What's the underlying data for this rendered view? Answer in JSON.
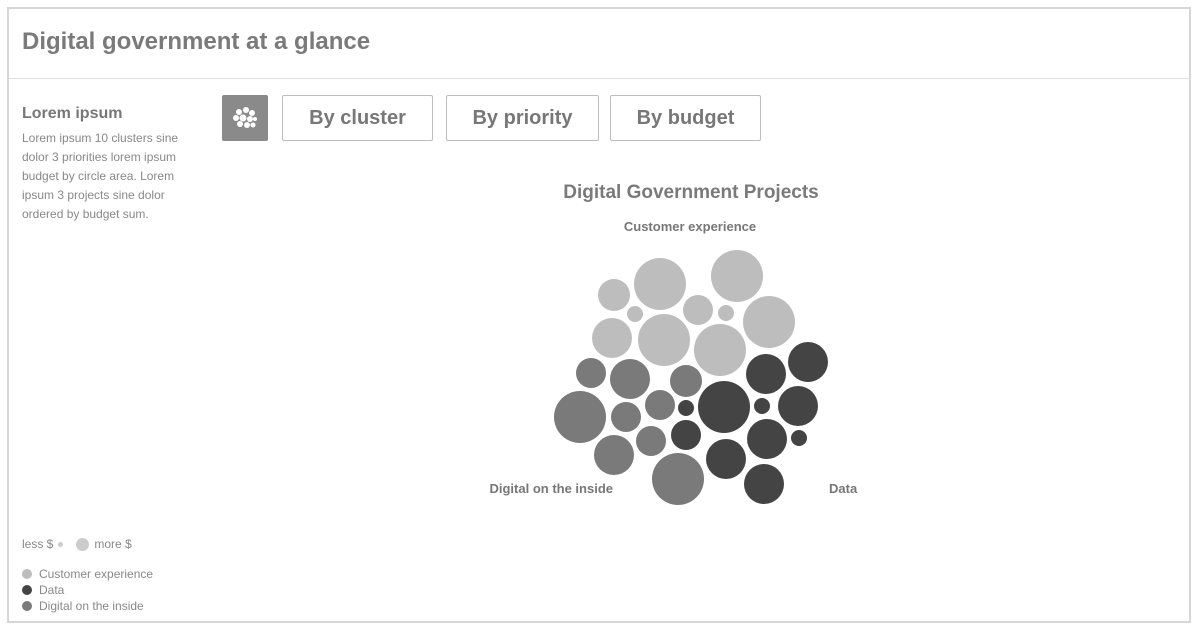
{
  "header": {
    "title": "Digital government at a glance"
  },
  "sidebar": {
    "heading": "Lorem ipsum",
    "text": "Lorem ipsum 10 clusters sine dolor 3 priorities lorem ipsum budget by circle area. Lorem ipsum 3 projects sine dolor ordered by budget sum."
  },
  "buttons": [
    "By cluster",
    "By priority",
    "By budget"
  ],
  "chart": {
    "title": "Digital Government Projects",
    "labels": [
      "Customer experience",
      "Digital on the inside",
      "Data"
    ]
  },
  "size_legend": {
    "less": "less $",
    "more": "more $"
  },
  "legend": [
    {
      "label": "Customer experience",
      "color": "#bdbdbd"
    },
    {
      "label": "Data",
      "color": "#444444"
    },
    {
      "label": "Digital on the inside",
      "color": "#7a7a7a"
    }
  ]
}
